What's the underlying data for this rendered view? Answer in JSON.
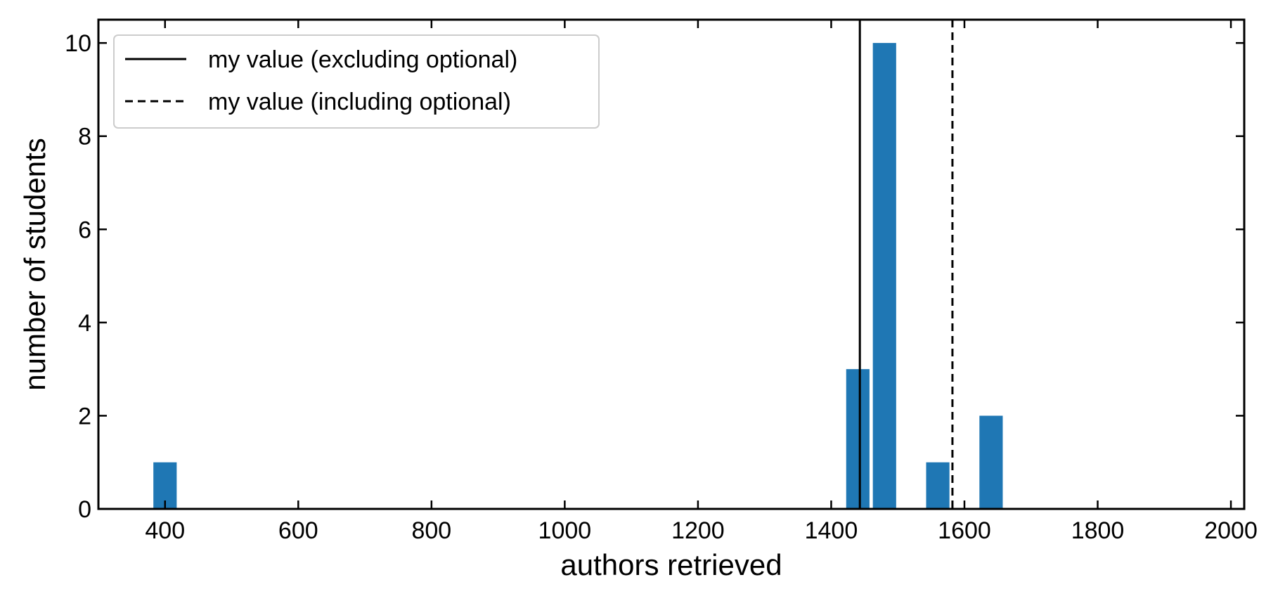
{
  "chart_data": {
    "type": "bar",
    "xlabel": "authors retrieved",
    "ylabel": "number of students",
    "xlim": [
      300,
      2020
    ],
    "ylim": [
      0,
      10.5
    ],
    "xticks": [
      400,
      600,
      800,
      1000,
      1200,
      1400,
      1600,
      1800,
      2000
    ],
    "xtick_labels": [
      "400",
      "600",
      "800",
      "1000",
      "1200",
      "1400",
      "1600",
      "1800",
      "2000"
    ],
    "yticks": [
      0,
      2,
      4,
      6,
      8,
      10
    ],
    "ytick_labels": [
      "0",
      "2",
      "4",
      "6",
      "8",
      "10"
    ],
    "bar_width": 35,
    "bars": [
      {
        "x": 400,
        "value": 1
      },
      {
        "x": 1440,
        "value": 3
      },
      {
        "x": 1480,
        "value": 10
      },
      {
        "x": 1560,
        "value": 1
      },
      {
        "x": 1640,
        "value": 2
      }
    ],
    "bar_color": "#1f77b4",
    "vlines": [
      {
        "x": 1443,
        "style": "solid",
        "label": "my value (excluding optional)"
      },
      {
        "x": 1582,
        "style": "dashed",
        "label": "my value (including optional)"
      }
    ],
    "legend": {
      "location": "upper left",
      "entries": [
        "my value (excluding optional)",
        "my value (including optional)"
      ]
    },
    "grid": false
  }
}
